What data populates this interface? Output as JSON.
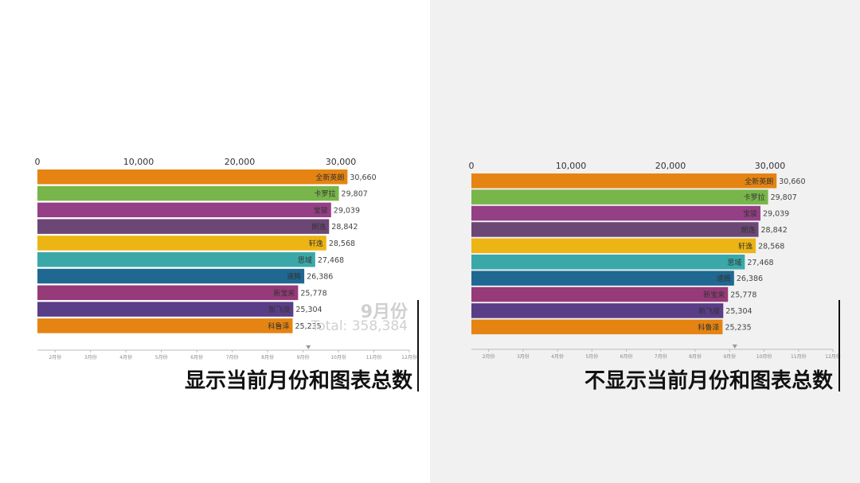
{
  "chart_data": [
    {
      "type": "bar",
      "orientation": "horizontal",
      "caption": "显示当前月份和图表总数",
      "current_month": "9月份",
      "total_label": "Total: 358,384",
      "x_ticks": [
        "0",
        "10,000",
        "20,000",
        "30,000"
      ],
      "xlim": [
        0,
        30000
      ],
      "timeline_ticks": [
        "2月份",
        "3月份",
        "4月份",
        "5月份",
        "6月份",
        "7月份",
        "8月份",
        "9月份",
        "10月份",
        "11月份",
        "12月份"
      ],
      "timeline_position": "9月份",
      "value_labels": [
        "30,660",
        "29,807",
        "29,039",
        "28,842",
        "28,568",
        "27,468",
        "26,386",
        "25,778",
        "25,304",
        "25,235"
      ],
      "categories": [
        "全新英朗",
        "卡罗拉",
        "宝骏",
        "朗逸",
        "轩逸",
        "思域",
        "速腾",
        "新宝来",
        "新飞度",
        "科鲁泽"
      ],
      "values": [
        30660,
        29807,
        29039,
        28842,
        28568,
        27468,
        26386,
        25778,
        25304,
        25235
      ],
      "colors": [
        "#e58412",
        "#78b54a",
        "#953f86",
        "#6c4776",
        "#ecb514",
        "#3aa8a8",
        "#1f6891",
        "#963a79",
        "#593d87",
        "#e58412"
      ]
    },
    {
      "type": "bar",
      "orientation": "horizontal",
      "caption": "不显示当前月份和图表总数",
      "x_ticks": [
        "0",
        "10,000",
        "20,000",
        "30,000"
      ],
      "xlim": [
        0,
        30000
      ],
      "timeline_ticks": [
        "2月份",
        "3月份",
        "4月份",
        "5月份",
        "6月份",
        "7月份",
        "8月份",
        "9月份",
        "10月份",
        "11月份",
        "12月份"
      ],
      "timeline_position": "9月份",
      "value_labels": [
        "30,660",
        "29,807",
        "29,039",
        "28,842",
        "28,568",
        "27,468",
        "26,386",
        "25,778",
        "25,304",
        "25,235"
      ],
      "categories": [
        "全新英朗",
        "卡罗拉",
        "宝骏",
        "朗逸",
        "轩逸",
        "思域",
        "速腾",
        "新宝来",
        "新飞度",
        "科鲁泽"
      ],
      "values": [
        30660,
        29807,
        29039,
        28842,
        28568,
        27468,
        26386,
        25778,
        25304,
        25235
      ],
      "colors": [
        "#e58412",
        "#78b54a",
        "#953f86",
        "#6c4776",
        "#ecb514",
        "#3aa8a8",
        "#1f6891",
        "#963a79",
        "#593d87",
        "#e58412"
      ]
    }
  ]
}
